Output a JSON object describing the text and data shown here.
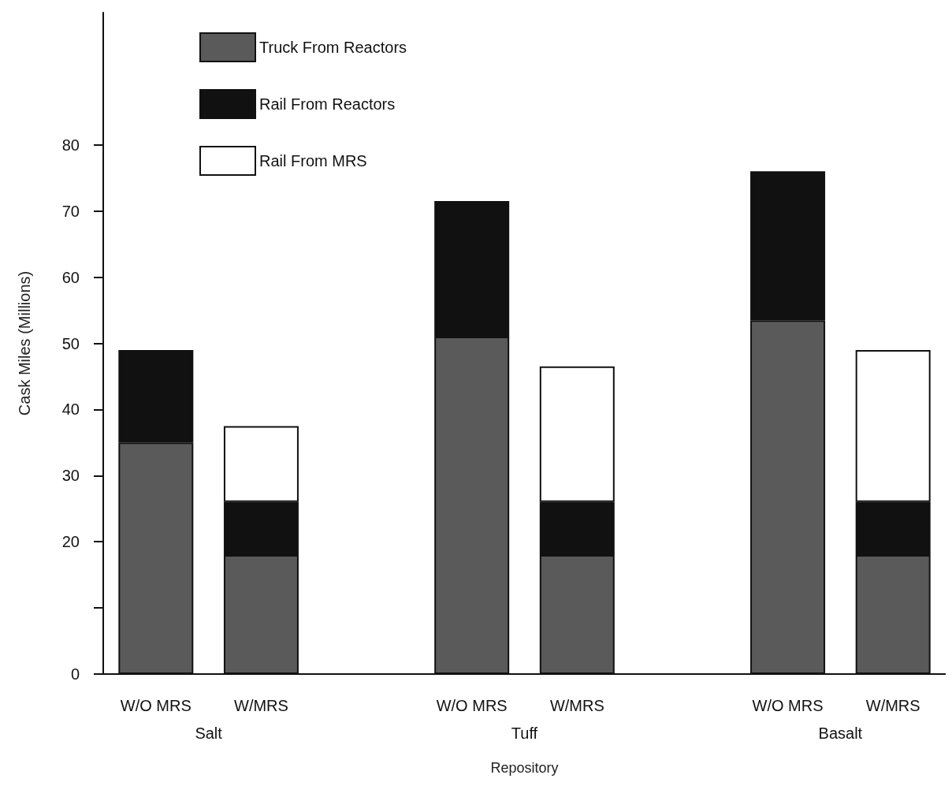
{
  "chart_data": {
    "type": "bar",
    "stacked": true,
    "ylabel": "Cask Miles (Millions)",
    "xlabel": "Repository",
    "categories": [
      "W/O MRS",
      "W/MRS",
      null,
      "W/O MRS",
      "W/MRS",
      null,
      "W/O MRS",
      "W/MRS"
    ],
    "series": [
      {
        "name": "Truck From Reactors",
        "color": "#5a5a5a",
        "values": [
          35,
          18,
          null,
          51,
          18,
          null,
          53.5,
          18
        ]
      },
      {
        "name": "Rail From Reactors",
        "color": "#111111",
        "values": [
          14,
          8,
          null,
          20.5,
          8,
          null,
          22.5,
          8
        ]
      },
      {
        "name": "Rail From MRS",
        "color": "#ffffff",
        "values": [
          null,
          11.5,
          null,
          null,
          20.5,
          null,
          null,
          23
        ]
      }
    ],
    "annotations": [
      "Salt",
      "Tuff",
      "Basalt"
    ],
    "ylim": [
      0,
      100
    ],
    "yticks": [
      0,
      {
        "value": 10,
        "label": null
      },
      20,
      30,
      40,
      50,
      60,
      70,
      80
    ],
    "grid": false,
    "legend": "top left"
  }
}
